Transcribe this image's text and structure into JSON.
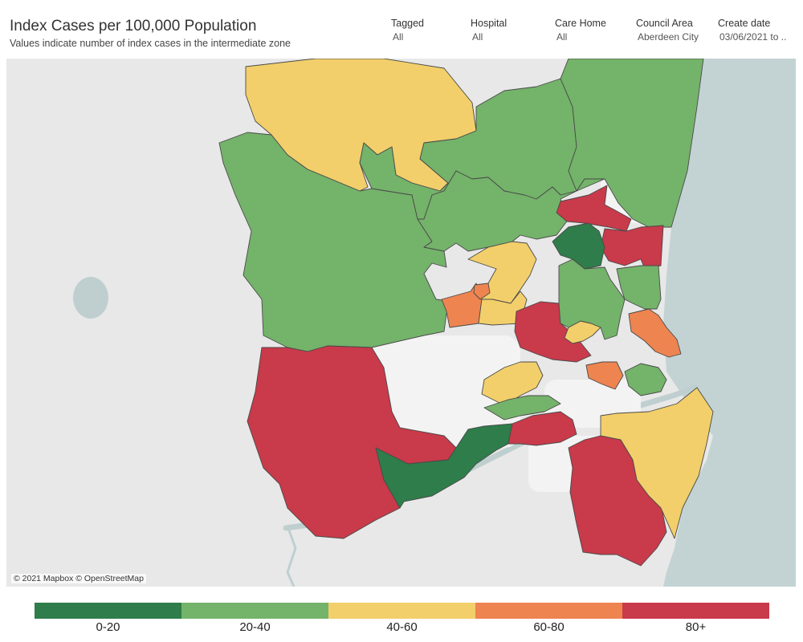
{
  "header": {
    "title": "Index Cases per 100,000 Population",
    "subtitle": "Values indicate number of index cases in the intermediate zone"
  },
  "filters": [
    {
      "label": "Tagged",
      "value": "All"
    },
    {
      "label": "Hospital",
      "value": "All"
    },
    {
      "label": "Care Home",
      "value": "All"
    },
    {
      "label": "Council Area",
      "value": "Aberdeen City"
    },
    {
      "label": "Create date",
      "value": "03/06/2021 to .."
    }
  ],
  "map": {
    "attribution": "© 2021 Mapbox © OpenStreetMap",
    "basemap_colors": {
      "land": "#e8e8e8",
      "sea": "#c3d3d4",
      "river": "#bfcfd0",
      "urban": "#f3f3f3"
    },
    "zones": [
      {
        "band": "40-60"
      },
      {
        "band": "20-40"
      },
      {
        "band": "20-40"
      },
      {
        "band": "20-40"
      },
      {
        "band": "20-40"
      },
      {
        "band": "80+"
      },
      {
        "band": "80+"
      },
      {
        "band": "0-20"
      },
      {
        "band": "40-60"
      },
      {
        "band": "60-80"
      },
      {
        "band": "40-60"
      },
      {
        "band": "60-80"
      },
      {
        "band": "80+"
      },
      {
        "band": "40-60"
      },
      {
        "band": "20-40"
      },
      {
        "band": "60-80"
      },
      {
        "band": "80+"
      },
      {
        "band": "0-20"
      },
      {
        "band": "80+"
      },
      {
        "band": "40-60"
      },
      {
        "band": "20-40"
      },
      {
        "band": "80+"
      },
      {
        "band": "40-60"
      },
      {
        "band": "20-40"
      },
      {
        "band": "60-80"
      },
      {
        "band": "20-40"
      }
    ]
  },
  "legend": {
    "items": [
      {
        "label": "0-20",
        "color": "#2e7d4a"
      },
      {
        "label": "20-40",
        "color": "#74b36a"
      },
      {
        "label": "40-60",
        "color": "#f2cf6a"
      },
      {
        "label": "60-80",
        "color": "#ee8450"
      },
      {
        "label": "80+",
        "color": "#c93a4a"
      }
    ]
  }
}
